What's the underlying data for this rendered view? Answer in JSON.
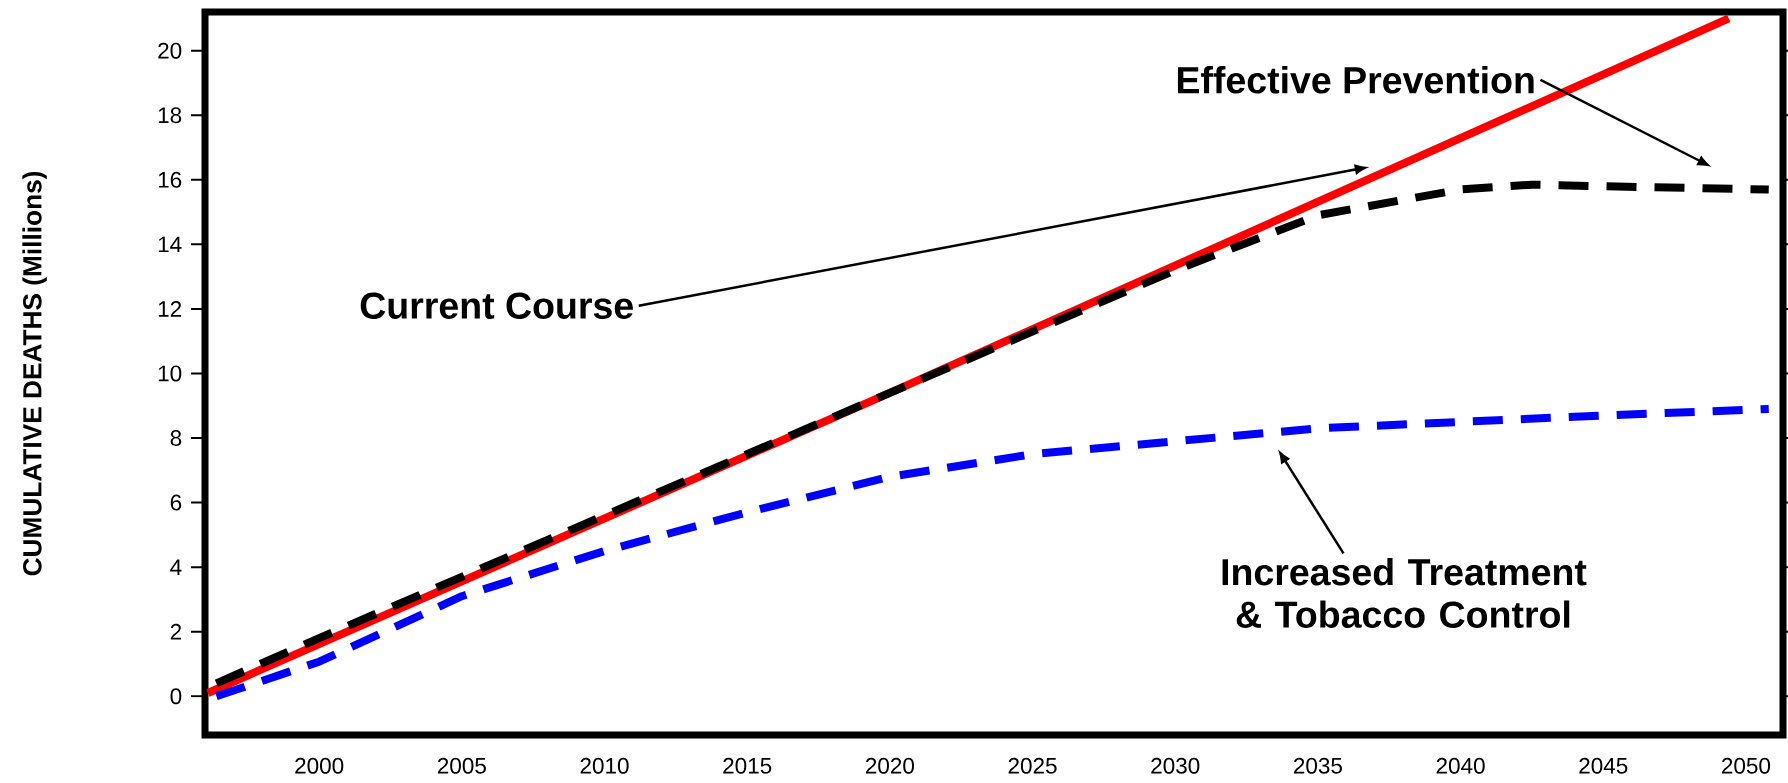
{
  "chart_data": {
    "type": "line",
    "ylabel": "CUMULATIVE DEATHS (Millions)",
    "xlim": [
      1996,
      2051.3
    ],
    "ylim": [
      -1.2,
      21.2
    ],
    "xticks": [
      2000,
      2005,
      2010,
      2015,
      2020,
      2025,
      2030,
      2035,
      2040,
      2045,
      2050
    ],
    "yticks": [
      0,
      2,
      4,
      6,
      8,
      10,
      12,
      14,
      16,
      18,
      20
    ],
    "series": [
      {
        "color": "#ff0000",
        "line_style": "solid",
        "x": [
          1996.1,
          2020,
          2049.4
        ],
        "values": [
          0.1,
          9.4,
          21.0
        ]
      },
      {
        "color": "#000000",
        "line_style": "dashed",
        "x": [
          1996.4,
          2000,
          2010,
          2020,
          2030,
          2035,
          2040,
          2042.5,
          2045,
          2050.8
        ],
        "values": [
          0.4,
          1.8,
          5.6,
          9.4,
          13.2,
          14.9,
          15.7,
          15.85,
          15.8,
          15.7
        ]
      },
      {
        "color": "#0000ff",
        "line_style": "dashed",
        "x": [
          1996.4,
          2000,
          2005,
          2010,
          2015,
          2020,
          2025,
          2030,
          2035,
          2040,
          2045,
          2050.8
        ],
        "values": [
          0.0,
          1.07,
          3.1,
          4.5,
          5.7,
          6.8,
          7.5,
          7.9,
          8.3,
          8.5,
          8.7,
          8.9
        ]
      }
    ],
    "annotations": [
      "Current Course",
      "Effective Prevention",
      "Increased Treatment & Tobacco Control"
    ]
  }
}
